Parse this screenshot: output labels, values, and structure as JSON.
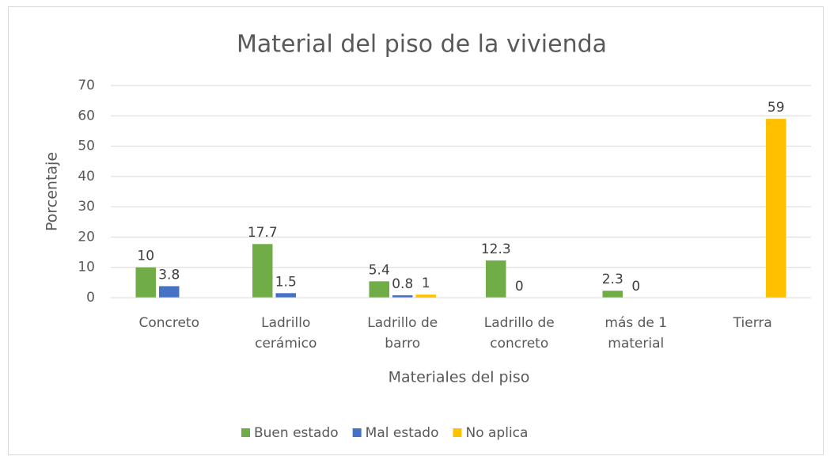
{
  "chart_data": {
    "type": "bar",
    "title": "Material del piso de la vivienda",
    "x_label": "Materiales del piso",
    "y_label": "Porcentaje",
    "categories": [
      "Concreto",
      "Ladrillo cerámico",
      "Ladrillo de barro",
      "Ladrillo de concreto",
      "más de 1 material",
      "Tierra"
    ],
    "series": [
      {
        "name": "Buen estado",
        "color": "#70ad47",
        "values": [
          10,
          17.7,
          5.4,
          12.3,
          2.3,
          null
        ]
      },
      {
        "name": "Mal estado",
        "color": "#4472c4",
        "values": [
          3.8,
          1.5,
          0.8,
          0,
          0,
          null
        ]
      },
      {
        "name": "No aplica",
        "color": "#ffc000",
        "values": [
          null,
          null,
          1,
          null,
          null,
          59
        ]
      }
    ],
    "ylim": [
      0,
      70
    ],
    "yticks": [
      0,
      10,
      20,
      30,
      40,
      50,
      60,
      70
    ],
    "grid": true,
    "legend": "bottom"
  }
}
